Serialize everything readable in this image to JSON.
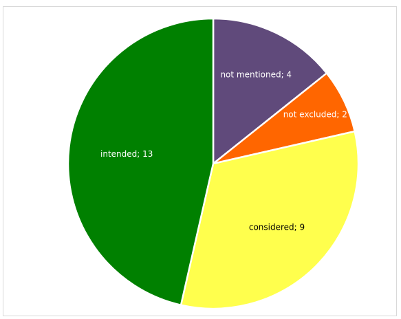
{
  "chart_data": {
    "type": "pie",
    "title": "",
    "categories": [
      "not mentioned",
      "not excluded",
      "considered",
      "intended"
    ],
    "values": [
      4,
      2,
      9,
      13
    ],
    "colors": [
      "#604a7b",
      "#ff6600",
      "#ffff4d",
      "#008000"
    ],
    "label_colors": [
      "#ffffff",
      "#ffffff",
      "#000000",
      "#ffffff"
    ],
    "data_labels": [
      "not mentioned; 4",
      "not excluded; 2",
      "considered; 9",
      "intended; 13"
    ],
    "start_angle_deg": 0,
    "direction": "clockwise",
    "legend": "none"
  }
}
